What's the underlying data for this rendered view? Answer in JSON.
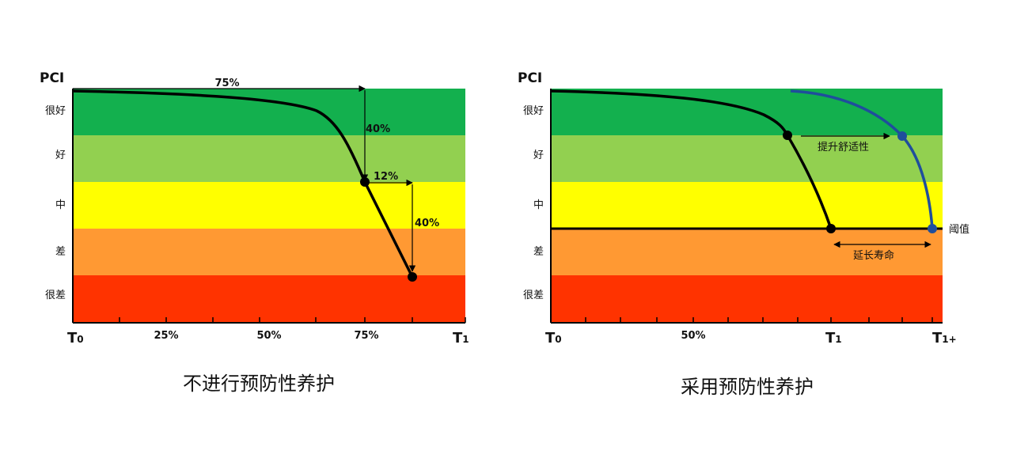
{
  "colors": {
    "band_very_good": "#13b04e",
    "band_good": "#92d050",
    "band_fair": "#ffff00",
    "band_poor": "#ff9933",
    "band_very_poor": "#ff3300",
    "curve": "#000000",
    "improved_curve": "#1f4e9c"
  },
  "left": {
    "y_title": "PCI",
    "bands": [
      "很好",
      "好",
      "中",
      "差",
      "很差"
    ],
    "x_ticks": {
      "t0_main": "T",
      "t0_sub": "0",
      "p25": "25%",
      "p50": "50%",
      "p75": "75%",
      "t1_main": "T",
      "t1_sub": "1"
    },
    "annotations": {
      "h75": "75%",
      "v40a": "40%",
      "h12": "12%",
      "v40b": "40%"
    },
    "caption": "不进行预防性养护"
  },
  "right": {
    "y_title": "PCI",
    "bands": [
      "很好",
      "好",
      "中",
      "差",
      "很差"
    ],
    "x_ticks": {
      "t0_main": "T",
      "t0_sub": "0",
      "p50": "50%",
      "t1_main": "T",
      "t1_sub": "1",
      "t1p_main": "T",
      "t1p_sub": "1+"
    },
    "annotations": {
      "comfort": "提升舒适性",
      "threshold": "阈值",
      "extend": "延长寿命"
    },
    "caption": "采用预防性养护"
  }
}
